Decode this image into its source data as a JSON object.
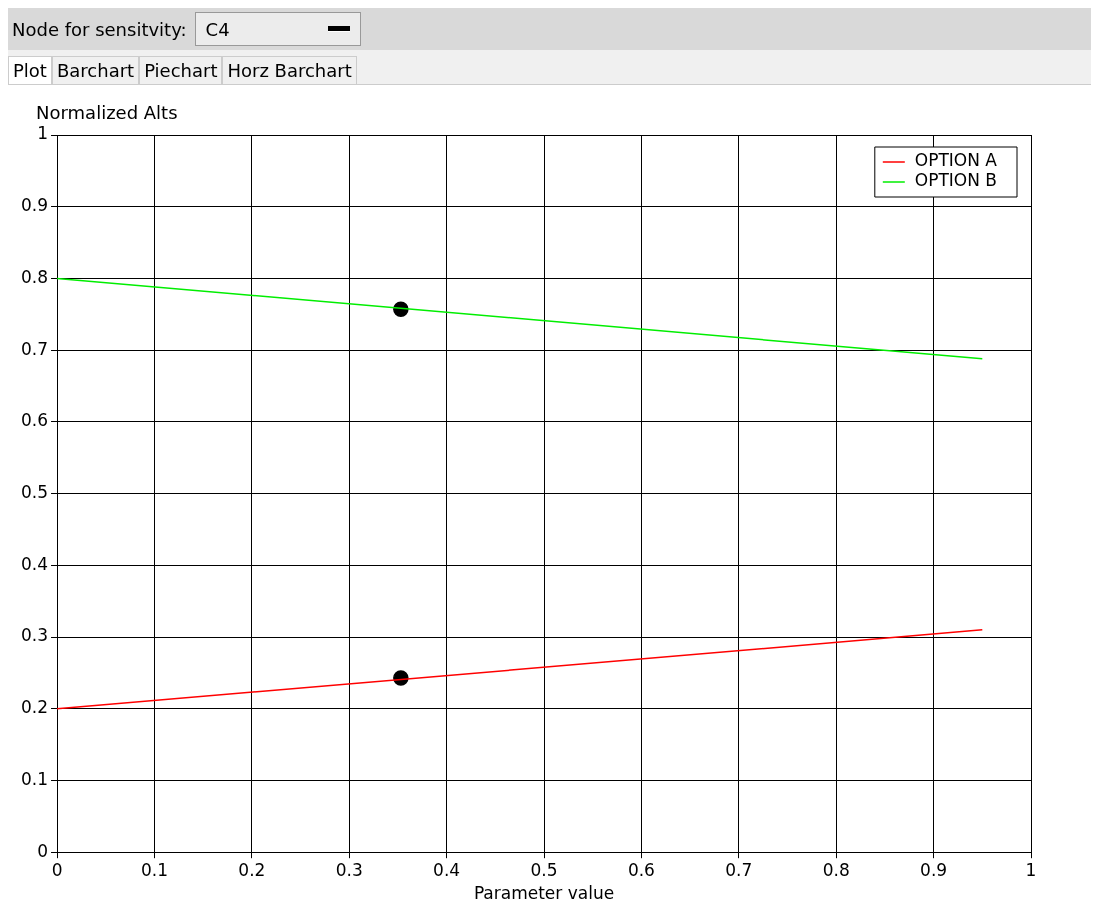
{
  "chart_data": {
    "type": "line",
    "ylabel": "Normalized Alts",
    "xlabel": "Parameter value",
    "annotations": [
      "Node for sensitvity:",
      "C4",
      "Plot",
      "Barchart",
      "Piechart",
      "Horz Barchart"
    ],
    "xlim": [
      0,
      1
    ],
    "xticks": [
      0,
      0.1,
      0.2,
      0.3,
      0.4,
      0.5,
      0.6,
      0.7,
      0.8,
      0.9,
      1
    ],
    "ylim": [
      0,
      1
    ],
    "yticks": [
      0,
      0.1,
      0.2,
      0.3,
      0.4,
      0.5,
      0.6,
      0.7,
      0.8,
      0.9,
      1
    ],
    "grid": true,
    "legend": "top right",
    "marker": "none",
    "line_style": "solid",
    "series": [
      {
        "name": "OPTION A",
        "type": "line",
        "color": "#ff0000",
        "x": [
          0,
          0.95
        ],
        "values": [
          0.2,
          0.31
        ]
      },
      {
        "name": "OPTION B",
        "type": "line",
        "color": "#00ee00",
        "x": [
          0,
          0.95
        ],
        "values": [
          0.8,
          0.688
        ]
      },
      {
        "type": "scatter",
        "color": "#000000",
        "marker": "circle",
        "x": [
          0.353,
          0.353
        ],
        "values": [
          0.243,
          0.757
        ]
      }
    ]
  }
}
